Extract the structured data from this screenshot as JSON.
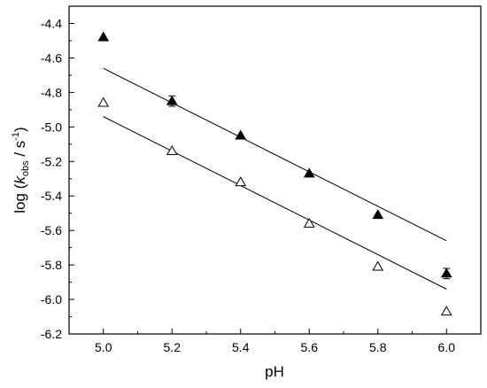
{
  "chart_data": {
    "type": "scatter",
    "title": "",
    "xlabel": "pH",
    "ylabel": {
      "prefix": "log (",
      "k": "k",
      "sub": "obs",
      "mid": " / s",
      "sup": "-1",
      "suffix": ")"
    },
    "xlim": [
      4.9,
      6.1
    ],
    "ylim": [
      -6.2,
      -4.3
    ],
    "xticks": [
      5.0,
      5.2,
      5.4,
      5.6,
      5.8,
      6.0
    ],
    "xtick_labels": [
      "5.0",
      "5.2",
      "5.4",
      "5.6",
      "5.8",
      "6.0"
    ],
    "yticks": [
      -4.4,
      -4.6,
      -4.8,
      -5.0,
      -5.2,
      -5.4,
      -5.6,
      -5.8,
      -6.0,
      -6.2
    ],
    "ytick_labels": [
      "-4.4",
      "-4.6",
      "-4.8",
      "-5.0",
      "-5.2",
      "-5.4",
      "-5.6",
      "-5.8",
      "-6.0",
      "-6.2"
    ],
    "grid": false,
    "series": [
      {
        "marker": "filled-triangle",
        "x": [
          5.0,
          5.2,
          5.4,
          5.6,
          5.8,
          6.0
        ],
        "y": [
          -4.48,
          -4.85,
          -5.05,
          -5.27,
          -5.51,
          -5.85
        ],
        "error": [
          0.0,
          0.03,
          0.0,
          0.0,
          0.0,
          0.03
        ],
        "fit": {
          "x": [
            5.0,
            6.0
          ],
          "y": [
            -4.66,
            -5.66
          ]
        }
      },
      {
        "marker": "open-triangle",
        "x": [
          5.0,
          5.2,
          5.4,
          5.6,
          5.8,
          6.0
        ],
        "y": [
          -4.86,
          -5.14,
          -5.32,
          -5.56,
          -5.81,
          -6.07
        ],
        "error": [
          0.0,
          0.0,
          0.0,
          0.0,
          0.0,
          0.0
        ],
        "fit": {
          "x": [
            5.0,
            6.0
          ],
          "y": [
            -4.94,
            -5.94
          ]
        }
      }
    ]
  }
}
